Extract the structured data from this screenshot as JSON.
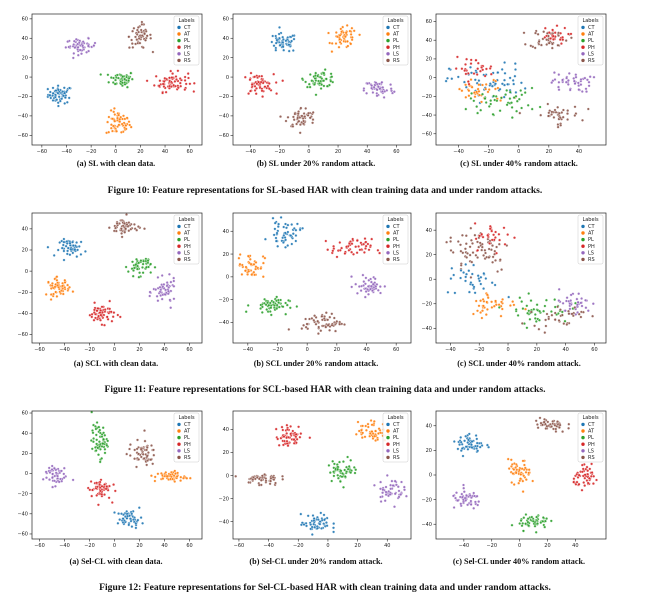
{
  "palette": {
    "CT": "#1f77b4",
    "AT": "#ff7f0e",
    "PL": "#2ca02c",
    "PH": "#d62728",
    "LS": "#9467bd",
    "RS": "#8c564b"
  },
  "figures": [
    {
      "caption": "Figure 10: Feature representations for SL-based HAR with clean training data and under random attacks.",
      "panels": [
        {
          "caption": "(a) SL with clean data.",
          "chart_data": {
            "type": "scatter",
            "legend_title": "Labels",
            "legend": [
              "CT",
              "AT",
              "PL",
              "PH",
              "LS",
              "RS"
            ],
            "legend_position": "top-right",
            "xticks": [
              -60,
              -40,
              -20,
              0,
              20,
              40,
              60
            ],
            "yticks": [
              60,
              40,
              20,
              0,
              -20,
              -40,
              -60
            ],
            "xlim": [
              -68,
              70
            ],
            "ylim": [
              -70,
              65
            ],
            "clusters": [
              {
                "label": "CT",
                "cx": -45,
                "cy": -18,
                "rx": 11,
                "ry": 10,
                "n": 60
              },
              {
                "label": "AT",
                "cx": 2,
                "cy": -48,
                "rx": 11,
                "ry": 14,
                "n": 60
              },
              {
                "label": "PL",
                "cx": 5,
                "cy": -2,
                "rx": 11,
                "ry": 9,
                "n": 60
              },
              {
                "label": "PH",
                "cx": 45,
                "cy": -5,
                "rx": 15,
                "ry": 11,
                "n": 70
              },
              {
                "label": "LS",
                "cx": -28,
                "cy": 32,
                "rx": 14,
                "ry": 8,
                "n": 55
              },
              {
                "label": "RS",
                "cx": 20,
                "cy": 42,
                "rx": 10,
                "ry": 14,
                "n": 55
              }
            ]
          }
        },
        {
          "caption": "(b) SL under 20% random attack.",
          "chart_data": {
            "type": "scatter",
            "legend_title": "Labels",
            "legend": [
              "CT",
              "AT",
              "PL",
              "PH",
              "LS",
              "RS"
            ],
            "legend_position": "top-right",
            "xticks": [
              -40,
              -20,
              0,
              20,
              40,
              60
            ],
            "yticks": [
              60,
              40,
              20,
              0,
              -20,
              -40,
              -60
            ],
            "xlim": [
              -52,
              70
            ],
            "ylim": [
              -70,
              65
            ],
            "clusters": [
              {
                "label": "CT",
                "cx": -18,
                "cy": 35,
                "rx": 11,
                "ry": 11,
                "n": 55
              },
              {
                "label": "AT",
                "cx": 25,
                "cy": 40,
                "rx": 9,
                "ry": 12,
                "n": 55
              },
              {
                "label": "PL",
                "cx": 8,
                "cy": -2,
                "rx": 12,
                "ry": 9,
                "n": 60
              },
              {
                "label": "PH",
                "cx": -35,
                "cy": -8,
                "rx": 12,
                "ry": 12,
                "n": 60
              },
              {
                "label": "LS",
                "cx": 48,
                "cy": -12,
                "rx": 11,
                "ry": 11,
                "n": 55
              },
              {
                "label": "RS",
                "cx": -5,
                "cy": -42,
                "rx": 11,
                "ry": 12,
                "n": 55
              }
            ]
          }
        },
        {
          "caption": "(c) SL under 40% random attack.",
          "chart_data": {
            "type": "scatter",
            "legend_title": "Labels",
            "legend": [
              "CT",
              "AT",
              "PL",
              "PH",
              "LS",
              "RS"
            ],
            "legend_position": "top-right",
            "xticks": [
              -40,
              -20,
              0,
              20,
              40
            ],
            "yticks": [
              60,
              40,
              20,
              0,
              -20,
              -40,
              -60
            ],
            "xlim": [
              -55,
              58
            ],
            "ylim": [
              -72,
              68
            ],
            "clusters": [
              {
                "label": "RS",
                "cx": 20,
                "cy": 42,
                "rx": 14,
                "ry": 12,
                "n": 45
              },
              {
                "label": "PH",
                "cx": 22,
                "cy": 45,
                "rx": 12,
                "ry": 10,
                "n": 25
              },
              {
                "label": "LS",
                "cx": 35,
                "cy": -5,
                "rx": 15,
                "ry": 12,
                "n": 45
              },
              {
                "label": "CT",
                "cx": -20,
                "cy": -5,
                "rx": 28,
                "ry": 22,
                "n": 60
              },
              {
                "label": "AT",
                "cx": -25,
                "cy": -15,
                "rx": 22,
                "ry": 15,
                "n": 40
              },
              {
                "label": "PL",
                "cx": -10,
                "cy": -25,
                "rx": 25,
                "ry": 15,
                "n": 45
              },
              {
                "label": "RS",
                "cx": 25,
                "cy": -40,
                "rx": 18,
                "ry": 12,
                "n": 40
              },
              {
                "label": "PH",
                "cx": -30,
                "cy": 10,
                "rx": 15,
                "ry": 12,
                "n": 30
              }
            ]
          }
        }
      ]
    },
    {
      "caption": "Figure 11: Feature representations for SCL-based HAR with clean training data and under random attacks.",
      "panels": [
        {
          "caption": "(a) SCL with clean data.",
          "chart_data": {
            "type": "scatter",
            "legend_title": "Labels",
            "legend": [
              "CT",
              "AT",
              "PL",
              "PH",
              "LS",
              "RS"
            ],
            "legend_position": "top-right",
            "xticks": [
              -60,
              -40,
              -20,
              0,
              20,
              40,
              60
            ],
            "yticks": [
              40,
              20,
              0,
              -20,
              -40,
              -60
            ],
            "xlim": [
              -66,
              70
            ],
            "ylim": [
              -68,
              55
            ],
            "clusters": [
              {
                "label": "CT",
                "cx": -33,
                "cy": 22,
                "rx": 12,
                "ry": 9,
                "n": 55
              },
              {
                "label": "AT",
                "cx": -45,
                "cy": -15,
                "rx": 10,
                "ry": 9,
                "n": 55
              },
              {
                "label": "PL",
                "cx": 20,
                "cy": 5,
                "rx": 10,
                "ry": 10,
                "n": 55
              },
              {
                "label": "PH",
                "cx": -10,
                "cy": -40,
                "rx": 12,
                "ry": 10,
                "n": 60
              },
              {
                "label": "LS",
                "cx": 40,
                "cy": -20,
                "rx": 10,
                "ry": 13,
                "n": 55
              },
              {
                "label": "RS",
                "cx": 8,
                "cy": 42,
                "rx": 12,
                "ry": 10,
                "n": 55
              }
            ]
          }
        },
        {
          "caption": "(b) SCL under 20% random attack.",
          "chart_data": {
            "type": "scatter",
            "legend_title": "Labels",
            "legend": [
              "CT",
              "AT",
              "PL",
              "PH",
              "LS",
              "RS"
            ],
            "legend_position": "top-right",
            "xticks": [
              -40,
              -20,
              0,
              20,
              40,
              60
            ],
            "yticks": [
              40,
              20,
              0,
              -20,
              -40
            ],
            "xlim": [
              -50,
              70
            ],
            "ylim": [
              -58,
              56
            ],
            "clusters": [
              {
                "label": "CT",
                "cx": -15,
                "cy": 38,
                "rx": 12,
                "ry": 12,
                "n": 50
              },
              {
                "label": "AT",
                "cx": -38,
                "cy": 10,
                "rx": 10,
                "ry": 12,
                "n": 50
              },
              {
                "label": "PL",
                "cx": -25,
                "cy": -25,
                "rx": 14,
                "ry": 8,
                "n": 55
              },
              {
                "label": "PH",
                "cx": 30,
                "cy": 25,
                "rx": 15,
                "ry": 9,
                "n": 55
              },
              {
                "label": "LS",
                "cx": 42,
                "cy": -8,
                "rx": 11,
                "ry": 10,
                "n": 50
              },
              {
                "label": "RS",
                "cx": 10,
                "cy": -40,
                "rx": 15,
                "ry": 9,
                "n": 60
              }
            ]
          }
        },
        {
          "caption": "(c) SCL under 40% random attack.",
          "chart_data": {
            "type": "scatter",
            "legend_title": "Labels",
            "legend": [
              "CT",
              "AT",
              "PL",
              "PH",
              "LS",
              "RS"
            ],
            "legend_position": "top-right",
            "xticks": [
              -40,
              -20,
              0,
              20,
              40,
              60
            ],
            "yticks": [
              40,
              20,
              0,
              -20,
              -40
            ],
            "xlim": [
              -50,
              68
            ],
            "ylim": [
              -52,
              54
            ],
            "clusters": [
              {
                "label": "RS",
                "cx": -20,
                "cy": 25,
                "rx": 25,
                "ry": 22,
                "n": 70
              },
              {
                "label": "PH",
                "cx": -10,
                "cy": 35,
                "rx": 15,
                "ry": 12,
                "n": 30
              },
              {
                "label": "CT",
                "cx": -25,
                "cy": 0,
                "rx": 20,
                "ry": 15,
                "n": 35
              },
              {
                "label": "AT",
                "cx": -10,
                "cy": -20,
                "rx": 18,
                "ry": 12,
                "n": 40
              },
              {
                "label": "PL",
                "cx": 20,
                "cy": -25,
                "rx": 25,
                "ry": 12,
                "n": 45
              },
              {
                "label": "LS",
                "cx": 45,
                "cy": -20,
                "rx": 15,
                "ry": 12,
                "n": 40
              },
              {
                "label": "RS",
                "cx": 35,
                "cy": -30,
                "rx": 20,
                "ry": 10,
                "n": 35
              }
            ]
          }
        }
      ]
    },
    {
      "caption": "Figure 12: Feature representations for Sel-CL-based HAR with clean training data and under random attacks.",
      "panels": [
        {
          "caption": "(a) Sel-CL with clean data.",
          "chart_data": {
            "type": "scatter",
            "legend_title": "Labels",
            "legend": [
              "CT",
              "AT",
              "PL",
              "PH",
              "LS",
              "RS"
            ],
            "legend_position": "top-right",
            "xticks": [
              -60,
              -40,
              -20,
              0,
              20,
              40,
              60
            ],
            "yticks": [
              60,
              40,
              20,
              0,
              -20,
              -40,
              -60
            ],
            "xlim": [
              -66,
              70
            ],
            "ylim": [
              -65,
              62
            ],
            "clusters": [
              {
                "label": "CT",
                "cx": 12,
                "cy": -45,
                "rx": 11,
                "ry": 9,
                "n": 50
              },
              {
                "label": "AT",
                "cx": 45,
                "cy": -3,
                "rx": 14,
                "ry": 6,
                "n": 50
              },
              {
                "label": "PL",
                "cx": -12,
                "cy": 32,
                "rx": 7,
                "ry": 18,
                "n": 60
              },
              {
                "label": "PH",
                "cx": -12,
                "cy": -15,
                "rx": 10,
                "ry": 12,
                "n": 55
              },
              {
                "label": "LS",
                "cx": -48,
                "cy": -1,
                "rx": 10,
                "ry": 12,
                "n": 50
              },
              {
                "label": "RS",
                "cx": 22,
                "cy": 20,
                "rx": 12,
                "ry": 14,
                "n": 55
              }
            ]
          }
        },
        {
          "caption": "(b) Sel-CL under 20% random attack.",
          "chart_data": {
            "type": "scatter",
            "legend_title": "Labels",
            "legend": [
              "CT",
              "AT",
              "PL",
              "PH",
              "LS",
              "RS"
            ],
            "legend_position": "top-right",
            "xticks": [
              -60,
              -40,
              -20,
              0,
              20,
              40
            ],
            "yticks": [
              40,
              20,
              0,
              -20,
              -40
            ],
            "xlim": [
              -64,
              56
            ],
            "ylim": [
              -55,
              56
            ],
            "clusters": [
              {
                "label": "CT",
                "cx": -8,
                "cy": -42,
                "rx": 11,
                "ry": 9,
                "n": 55
              },
              {
                "label": "AT",
                "cx": 30,
                "cy": 38,
                "rx": 11,
                "ry": 10,
                "n": 55
              },
              {
                "label": "PL",
                "cx": 10,
                "cy": 5,
                "rx": 11,
                "ry": 11,
                "n": 55
              },
              {
                "label": "PH",
                "cx": -25,
                "cy": 34,
                "rx": 11,
                "ry": 10,
                "n": 55
              },
              {
                "label": "LS",
                "cx": 42,
                "cy": -12,
                "rx": 10,
                "ry": 11,
                "n": 50
              },
              {
                "label": "RS",
                "cx": -45,
                "cy": -3,
                "rx": 13,
                "ry": 6,
                "n": 50
              }
            ]
          }
        },
        {
          "caption": "(c) Sel-CL under 40% random attack.",
          "chart_data": {
            "type": "scatter",
            "legend_title": "Labels",
            "legend": [
              "CT",
              "AT",
              "PL",
              "PH",
              "LS",
              "RS"
            ],
            "legend_position": "top-right",
            "xticks": [
              -40,
              -20,
              0,
              20,
              40
            ],
            "yticks": [
              40,
              20,
              0,
              -20,
              -40
            ],
            "xlim": [
              -60,
              62
            ],
            "ylim": [
              -52,
              52
            ],
            "clusters": [
              {
                "label": "CT",
                "cx": -35,
                "cy": 25,
                "rx": 11,
                "ry": 9,
                "n": 55
              },
              {
                "label": "AT",
                "cx": 0,
                "cy": 2,
                "rx": 9,
                "ry": 11,
                "n": 55
              },
              {
                "label": "PL",
                "cx": 10,
                "cy": -38,
                "rx": 12,
                "ry": 7,
                "n": 55
              },
              {
                "label": "PH",
                "cx": 48,
                "cy": -2,
                "rx": 10,
                "ry": 9,
                "n": 55
              },
              {
                "label": "LS",
                "cx": -38,
                "cy": -20,
                "rx": 12,
                "ry": 8,
                "n": 50
              },
              {
                "label": "RS",
                "cx": 22,
                "cy": 40,
                "rx": 13,
                "ry": 7,
                "n": 50
              }
            ]
          }
        }
      ]
    }
  ]
}
